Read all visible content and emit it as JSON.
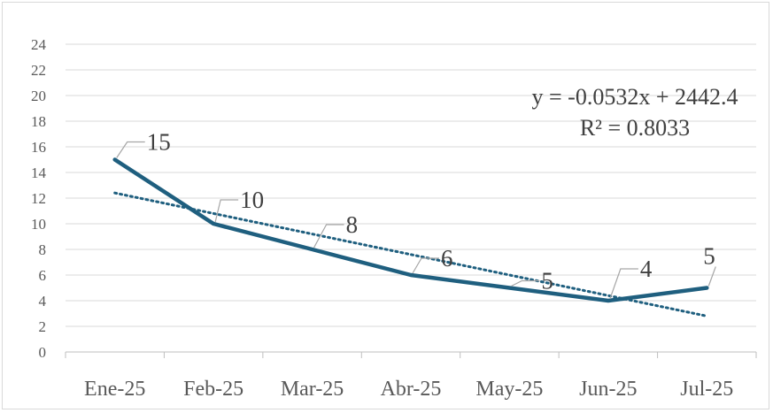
{
  "chart_data": {
    "type": "line",
    "categories": [
      "Ene-25",
      "Feb-25",
      "Mar-25",
      "Abr-25",
      "May-25",
      "Jun-25",
      "Jul-25"
    ],
    "series": [
      {
        "values": [
          15,
          10,
          8,
          6,
          5,
          4,
          5
        ],
        "color": "#1f5f7f"
      }
    ],
    "trendline": {
      "type": "linear",
      "start_value": 12.4,
      "end_value": 2.8,
      "color": "#1f5f7f",
      "style": "dotted",
      "equation": "y = -0.0532x + 2442.4",
      "r_squared": "R² = 0.8033"
    },
    "y_ticks": [
      "0",
      "2",
      "4",
      "6",
      "8",
      "10",
      "12",
      "14",
      "16",
      "18",
      "20",
      "22",
      "24"
    ],
    "ylim": [
      0,
      24
    ],
    "grid": true,
    "legend": "none",
    "data_labels": [
      "15",
      "10",
      "8",
      "6",
      "5",
      "4",
      "5"
    ]
  }
}
